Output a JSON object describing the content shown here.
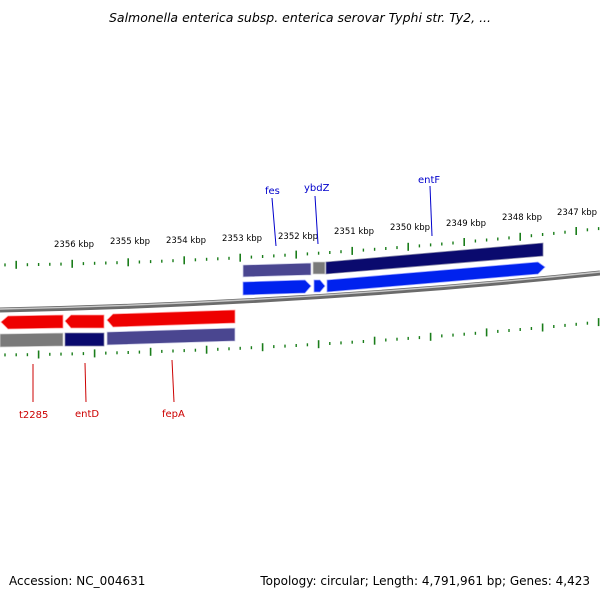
{
  "title": "Salmonella enterica subsp. enterica serovar Typhi str. Ty2, ...",
  "footer": {
    "accession": "Accession: NC_004631",
    "info": "Topology: circular; Length: 4,791,961 bp; Genes: 4,423"
  },
  "colors": {
    "tick": "#1a7d1a",
    "backbone": "#8a8a8a",
    "forward_gene": "#0022ee",
    "forward_feature_dark": "#0a0a6e",
    "forward_feature_light": "#4a4690",
    "reverse_gene": "#ee0000",
    "reverse_feature_dark": "#0a0a6e",
    "reverse_feature_light": "#4a4690",
    "unknown_feature": "#7a7a7a",
    "forward_label": "#0000cc",
    "reverse_label": "#cc0000"
  },
  "axis": {
    "unit": "kbp",
    "ticks": [
      "2356 kbp",
      "2355 kbp",
      "2354 kbp",
      "2353 kbp",
      "2352 kbp",
      "2351 kbp",
      "2350 kbp",
      "2349 kbp",
      "2348 kbp",
      "2347 kbp"
    ]
  },
  "forward_genes": [
    {
      "label": "fes",
      "feature": "light"
    },
    {
      "label": "ybdZ",
      "feature": "gray"
    },
    {
      "label": "entF",
      "feature": "dark"
    }
  ],
  "reverse_genes": [
    {
      "label": "t2285",
      "feature": "gray"
    },
    {
      "label": "entD",
      "feature": "dark"
    },
    {
      "label": "fepA",
      "feature": "light"
    }
  ]
}
